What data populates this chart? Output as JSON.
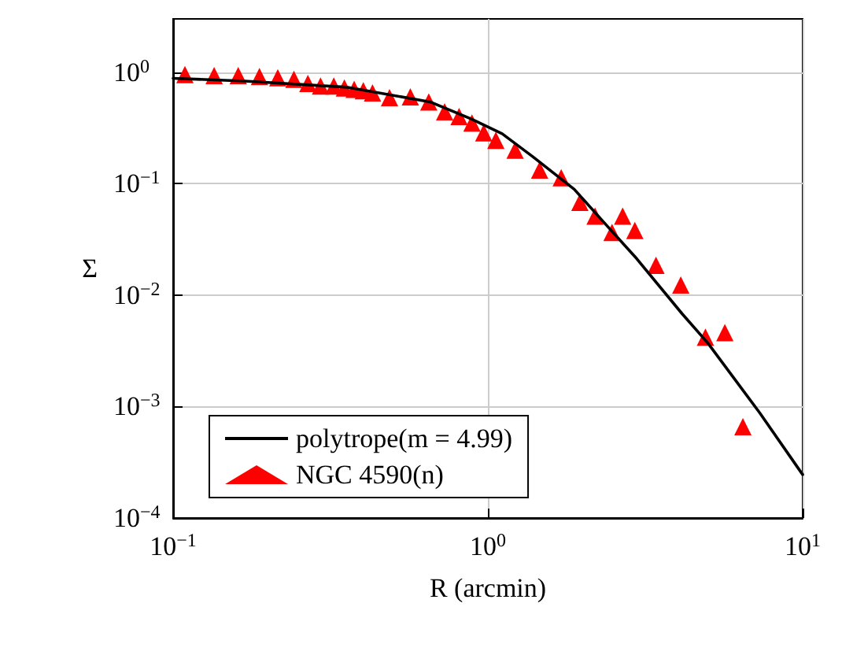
{
  "chart_data": {
    "type": "scatter",
    "xlabel": "R (arcmin)",
    "ylabel": "Σ",
    "log": "xy",
    "grid": true,
    "legend": "bottom left",
    "xlim": [
      0.1,
      10
    ],
    "ylim": [
      0.0001,
      3
    ],
    "xticks": [
      {
        "value": 0.1,
        "label": "10$^{−1}$"
      },
      {
        "value": 1,
        "label": "10$^{0}$"
      },
      {
        "value": 10,
        "label": "10$^{1}$"
      }
    ],
    "yticks": [
      {
        "value": 0.0001,
        "label": "10$^{−4}$"
      },
      {
        "value": 0.001,
        "label": "10$^{−3}$"
      },
      {
        "value": 0.01,
        "label": "10$^{−2}$"
      },
      {
        "value": 0.1,
        "label": "10$^{−1}$"
      },
      {
        "value": 1,
        "label": "10$^{0}$"
      }
    ],
    "series": [
      {
        "name": "polytrope(m = 4.99)",
        "type": "line",
        "marker": "none",
        "line_style": "solid",
        "color": "#000000",
        "x": [
          0.1,
          0.169,
          0.359,
          0.655,
          0.886,
          1.11,
          1.39,
          1.88,
          2.36,
          2.97,
          4.14,
          5.0,
          7.3,
          10
        ],
        "values": [
          0.88,
          0.83,
          0.73,
          0.54,
          0.38,
          0.28,
          0.174,
          0.089,
          0.0435,
          0.0212,
          0.0068,
          0.0037,
          0.00088,
          0.000245
        ]
      },
      {
        "name": "NGC 4590(n)",
        "marker": "triangle",
        "color": "#ff0000",
        "x": [
          0.109,
          0.135,
          0.161,
          0.188,
          0.215,
          0.242,
          0.268,
          0.294,
          0.324,
          0.35,
          0.376,
          0.402,
          0.43,
          0.487,
          0.567,
          0.649,
          0.729,
          0.81,
          0.89,
          0.97,
          1.06,
          1.22,
          1.46,
          1.71,
          1.96,
          2.19,
          2.48,
          2.68,
          2.93,
          3.42,
          4.1,
          4.91,
          5.66,
          6.46
        ],
        "values": [
          0.95,
          0.93,
          0.93,
          0.91,
          0.89,
          0.86,
          0.79,
          0.75,
          0.75,
          0.72,
          0.7,
          0.68,
          0.65,
          0.59,
          0.6,
          0.54,
          0.44,
          0.4,
          0.35,
          0.285,
          0.244,
          0.199,
          0.132,
          0.113,
          0.068,
          0.051,
          0.0365,
          0.051,
          0.038,
          0.0185,
          0.0123,
          0.0042,
          0.0046,
          0.00066
        ]
      }
    ]
  }
}
